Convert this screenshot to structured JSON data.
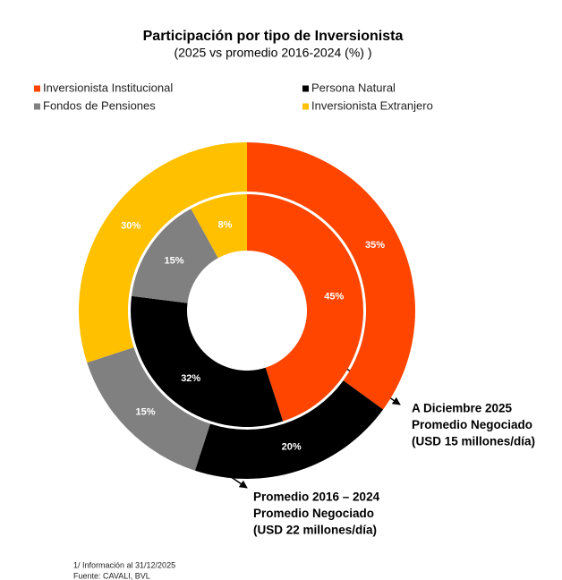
{
  "chart_data": {
    "type": "donut",
    "title": "Participación por tipo de Inversionista",
    "subtitle": "(2025 vs promedio 2016-2024 (%) )",
    "categories": [
      "Inversionista Institucional",
      "Persona Natural",
      "Fondos de Pensiones",
      "Inversionista Extranjero"
    ],
    "colors": [
      "#ff4500",
      "#000000",
      "#808080",
      "#ffc000"
    ],
    "series": [
      {
        "values": [
          35,
          20,
          15,
          30
        ],
        "value_labels": [
          "35%",
          "20%",
          "15%",
          "30%"
        ]
      },
      {
        "values": [
          45,
          32,
          15,
          8
        ],
        "value_labels": [
          "45%",
          "32%",
          "15%",
          "8%"
        ]
      }
    ],
    "annotations": [
      {
        "lines": [
          "A Diciembre 2025",
          "Promedio Negociado",
          "(USD 15 millones/día)"
        ]
      },
      {
        "lines": [
          "Promedio 2016 – 2024",
          "Promedio Negociado",
          "(USD 22 millones/día)"
        ]
      }
    ],
    "footnotes": [
      "1/ Información al 31/12/2025",
      "Fuente: CAVALI, BVL"
    ]
  }
}
